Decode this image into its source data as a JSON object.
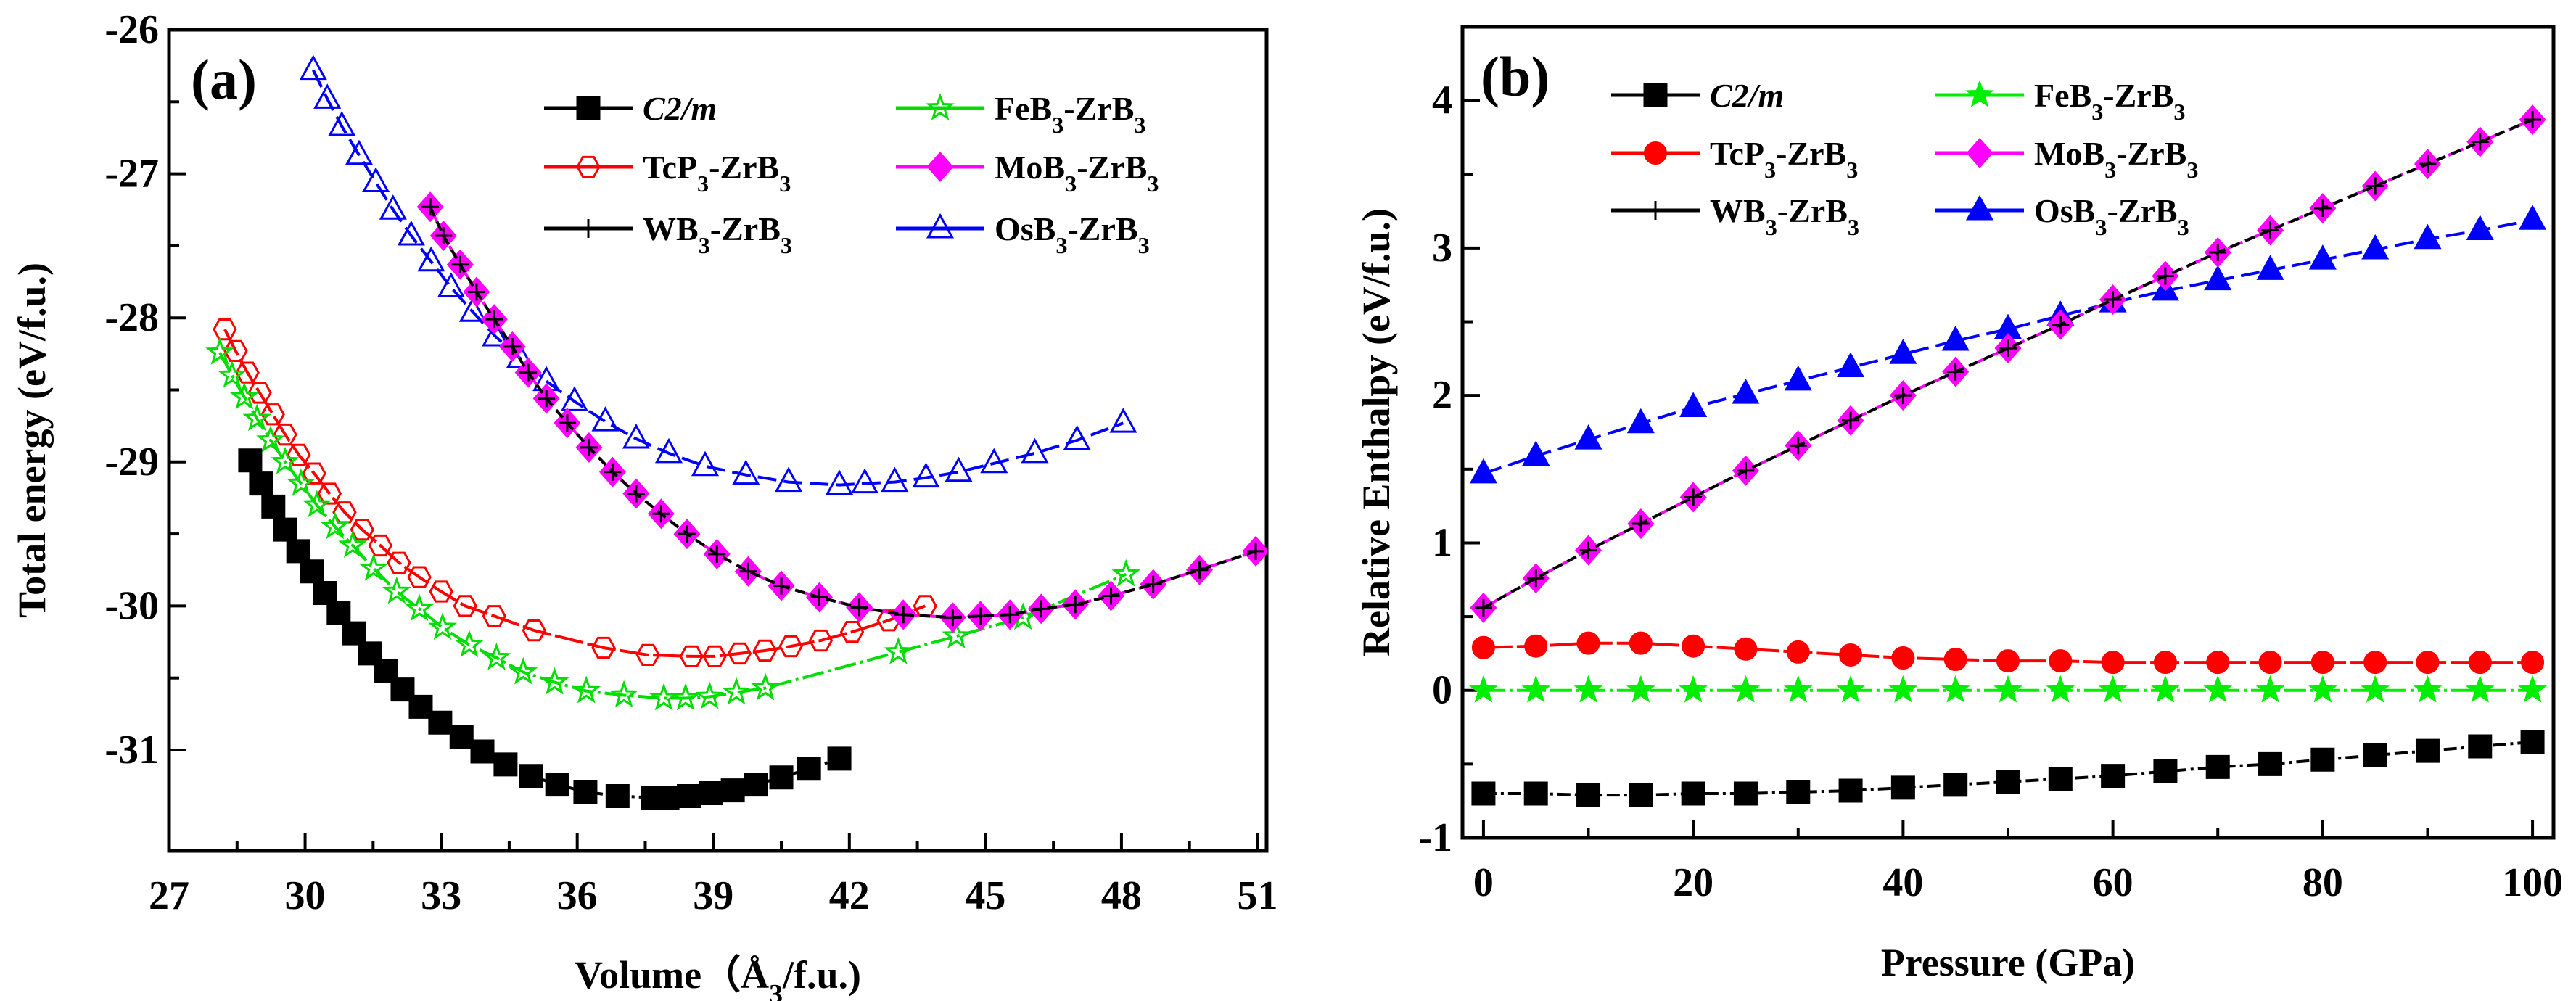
{
  "chart_data": [
    {
      "type": "line",
      "panel_label": "(a)",
      "xlabel": "Volume（Å3/f.u.)",
      "ylabel": "Total energy (eV/f.u.)",
      "xlim": [
        27,
        51.2
      ],
      "ylim": [
        -31.7,
        -26
      ],
      "xticks": [
        27,
        30,
        33,
        36,
        39,
        42,
        45,
        48,
        51
      ],
      "yticks": [
        -26,
        -27,
        -28,
        -29,
        -30,
        -31
      ],
      "grid": false,
      "legend_position": "top",
      "series": [
        {
          "name": "C2/m",
          "color": "#000000",
          "marker": "square",
          "filled": true,
          "x": [
            28.79,
            29.03,
            29.3,
            29.56,
            29.85,
            30.15,
            30.44,
            30.74,
            31.08,
            31.43,
            31.78,
            32.15,
            32.55,
            32.98,
            33.45,
            33.91,
            34.42,
            34.98,
            35.56,
            36.18,
            36.89,
            37.67,
            37.99,
            38.46,
            38.94,
            39.43,
            39.94,
            40.5,
            41.11,
            41.78
          ],
          "y": [
            -28.99,
            -29.15,
            -29.31,
            -29.47,
            -29.62,
            -29.76,
            -29.91,
            -30.05,
            -30.19,
            -30.33,
            -30.45,
            -30.58,
            -30.7,
            -30.81,
            -30.91,
            -31.01,
            -31.1,
            -31.18,
            -31.24,
            -31.29,
            -31.32,
            -31.33,
            -31.33,
            -31.32,
            -31.3,
            -31.28,
            -31.24,
            -31.19,
            -31.13,
            -31.06
          ]
        },
        {
          "name": "TcP3-ZrB3",
          "color": "#ff0000",
          "marker": "hexagon",
          "filled": false,
          "x": [
            28.23,
            28.47,
            28.73,
            29.0,
            29.29,
            29.56,
            29.86,
            30.2,
            30.54,
            30.87,
            31.26,
            31.66,
            32.07,
            32.52,
            33.0,
            33.53,
            34.17,
            35.05,
            36.58,
            37.56,
            38.52,
            39.03,
            39.58,
            40.14,
            40.71,
            41.37,
            42.06,
            42.87,
            43.67
          ],
          "y": [
            -28.08,
            -28.23,
            -28.38,
            -28.52,
            -28.67,
            -28.81,
            -28.95,
            -29.08,
            -29.22,
            -29.35,
            -29.47,
            -29.58,
            -29.7,
            -29.8,
            -29.9,
            -30.0,
            -30.07,
            -30.17,
            -30.29,
            -30.34,
            -30.35,
            -30.35,
            -30.33,
            -30.31,
            -30.28,
            -30.24,
            -30.18,
            -30.1,
            -30.0
          ]
        },
        {
          "name": "WB3-ZrB3",
          "color": "#000000",
          "marker": "plus",
          "filled": false,
          "x": [
            32.76,
            33.05,
            33.42,
            33.78,
            34.17,
            34.57,
            34.92,
            35.32,
            35.78,
            36.26,
            36.78,
            37.3,
            37.85,
            38.42,
            39.08,
            39.77,
            40.5,
            41.34,
            42.22,
            43.19,
            44.28,
            44.89,
            45.54,
            46.23,
            46.98,
            47.77,
            48.7,
            49.72,
            50.96
          ],
          "y": [
            -27.23,
            -27.43,
            -27.63,
            -27.82,
            -28.01,
            -28.2,
            -28.38,
            -28.56,
            -28.73,
            -28.9,
            -29.07,
            -29.22,
            -29.36,
            -29.5,
            -29.64,
            -29.76,
            -29.86,
            -29.94,
            -30.01,
            -30.06,
            -30.08,
            -30.07,
            -30.06,
            -30.02,
            -29.99,
            -29.93,
            -29.85,
            -29.75,
            -29.62
          ]
        },
        {
          "name": "FeB3-ZrB3",
          "color": "#00dd00",
          "marker": "star",
          "filled": false,
          "x": [
            28.12,
            28.39,
            28.66,
            28.94,
            29.24,
            29.56,
            29.91,
            30.26,
            30.66,
            31.05,
            31.51,
            32.02,
            32.52,
            33.03,
            33.62,
            34.22,
            34.81,
            35.5,
            36.2,
            37.03,
            37.91,
            38.39,
            38.92,
            39.51,
            40.15,
            43.08,
            44.36,
            45.83,
            48.1
          ],
          "y": [
            -28.24,
            -28.4,
            -28.55,
            -28.7,
            -28.85,
            -29.0,
            -29.15,
            -29.3,
            -29.45,
            -29.58,
            -29.74,
            -29.9,
            -30.02,
            -30.15,
            -30.27,
            -30.36,
            -30.46,
            -30.53,
            -30.59,
            -30.62,
            -30.64,
            -30.64,
            -30.63,
            -30.6,
            -30.57,
            -30.32,
            -30.21,
            -30.08,
            -29.78
          ]
        },
        {
          "name": "MoB3-ZrB3",
          "color": "#ff00ff",
          "marker": "diamond",
          "filled": true,
          "x": [
            32.76,
            33.05,
            33.42,
            33.78,
            34.17,
            34.57,
            34.92,
            35.32,
            35.78,
            36.26,
            36.78,
            37.3,
            37.85,
            38.42,
            39.08,
            39.77,
            40.5,
            41.34,
            42.22,
            43.19,
            44.28,
            44.89,
            45.54,
            46.23,
            46.98,
            47.77,
            48.7,
            49.72,
            50.96
          ],
          "y": [
            -27.23,
            -27.43,
            -27.63,
            -27.82,
            -28.01,
            -28.2,
            -28.38,
            -28.56,
            -28.73,
            -28.9,
            -29.07,
            -29.22,
            -29.36,
            -29.5,
            -29.64,
            -29.76,
            -29.86,
            -29.94,
            -30.01,
            -30.06,
            -30.08,
            -30.07,
            -30.06,
            -30.02,
            -29.99,
            -29.93,
            -29.85,
            -29.75,
            -29.62
          ]
        },
        {
          "name": "OsB3-ZrB3",
          "color": "#0000ff",
          "marker": "triangle",
          "filled": false,
          "x": [
            30.18,
            30.49,
            30.81,
            31.19,
            31.56,
            31.94,
            32.34,
            32.78,
            33.22,
            33.7,
            34.2,
            34.74,
            35.32,
            35.94,
            36.62,
            37.3,
            38.02,
            38.82,
            39.72,
            40.66,
            41.78,
            42.34,
            43.0,
            43.69,
            44.41,
            45.19,
            46.09,
            47.02,
            48.04
          ],
          "y": [
            -26.28,
            -26.48,
            -26.67,
            -26.87,
            -27.06,
            -27.25,
            -27.43,
            -27.61,
            -27.79,
            -27.96,
            -28.13,
            -28.28,
            -28.44,
            -28.58,
            -28.72,
            -28.84,
            -28.94,
            -29.03,
            -29.09,
            -29.14,
            -29.16,
            -29.15,
            -29.14,
            -29.11,
            -29.07,
            -29.01,
            -28.94,
            -28.85,
            -28.73
          ]
        }
      ]
    },
    {
      "type": "line",
      "panel_label": "(b)",
      "xlabel": "Pressure (GPa)",
      "ylabel": "Relative Enthalpy  (eV/f.u.)",
      "xlim": [
        -2,
        102
      ],
      "ylim": [
        -1,
        4.5
      ],
      "xticks": [
        0,
        20,
        40,
        60,
        80,
        100
      ],
      "yticks": [
        -1,
        0,
        1,
        2,
        3,
        4
      ],
      "grid": false,
      "legend_position": "top",
      "x": [
        0,
        5,
        10,
        15,
        20,
        25,
        30,
        35,
        40,
        45,
        50,
        55,
        60,
        65,
        70,
        75,
        80,
        85,
        90,
        95,
        100
      ],
      "series": [
        {
          "name": "C2/m",
          "color": "#000000",
          "marker": "square",
          "filled": true,
          "values": [
            -0.7,
            -0.7,
            -0.71,
            -0.71,
            -0.7,
            -0.7,
            -0.69,
            -0.68,
            -0.66,
            -0.64,
            -0.62,
            -0.6,
            -0.58,
            -0.55,
            -0.52,
            -0.5,
            -0.47,
            -0.44,
            -0.41,
            -0.38,
            -0.35
          ]
        },
        {
          "name": "TcP3-ZrB3",
          "color": "#ff0000",
          "marker": "circle",
          "filled": true,
          "values": [
            0.29,
            0.3,
            0.32,
            0.32,
            0.3,
            0.28,
            0.26,
            0.24,
            0.22,
            0.21,
            0.2,
            0.2,
            0.19,
            0.19,
            0.19,
            0.19,
            0.19,
            0.19,
            0.19,
            0.19,
            0.19
          ]
        },
        {
          "name": "WB3-ZrB3",
          "color": "#000000",
          "marker": "plus",
          "filled": false,
          "values": [
            0.56,
            0.76,
            0.95,
            1.13,
            1.31,
            1.49,
            1.66,
            1.83,
            2.0,
            2.16,
            2.32,
            2.48,
            2.65,
            2.81,
            2.97,
            3.12,
            3.27,
            3.42,
            3.57,
            3.72,
            3.87
          ]
        },
        {
          "name": "FeB3-ZrB3",
          "color": "#00ee00",
          "marker": "star",
          "filled": true,
          "values": [
            0,
            0,
            0,
            0,
            0,
            0,
            0,
            0,
            0,
            0,
            0,
            0,
            0,
            0,
            0,
            0,
            0,
            0,
            0,
            0,
            0
          ]
        },
        {
          "name": "MoB3-ZrB3",
          "color": "#ff00ff",
          "marker": "diamond",
          "filled": true,
          "values": [
            0.56,
            0.76,
            0.95,
            1.13,
            1.31,
            1.49,
            1.66,
            1.83,
            2.0,
            2.16,
            2.32,
            2.48,
            2.65,
            2.81,
            2.97,
            3.12,
            3.27,
            3.42,
            3.57,
            3.72,
            3.87
          ]
        },
        {
          "name": "OsB3-ZrB3",
          "color": "#0000ff",
          "marker": "triangle",
          "filled": true,
          "values": [
            1.47,
            1.59,
            1.7,
            1.81,
            1.92,
            2.01,
            2.1,
            2.19,
            2.28,
            2.37,
            2.45,
            2.54,
            2.63,
            2.71,
            2.78,
            2.85,
            2.92,
            2.99,
            3.06,
            3.12,
            3.19
          ]
        }
      ]
    }
  ]
}
